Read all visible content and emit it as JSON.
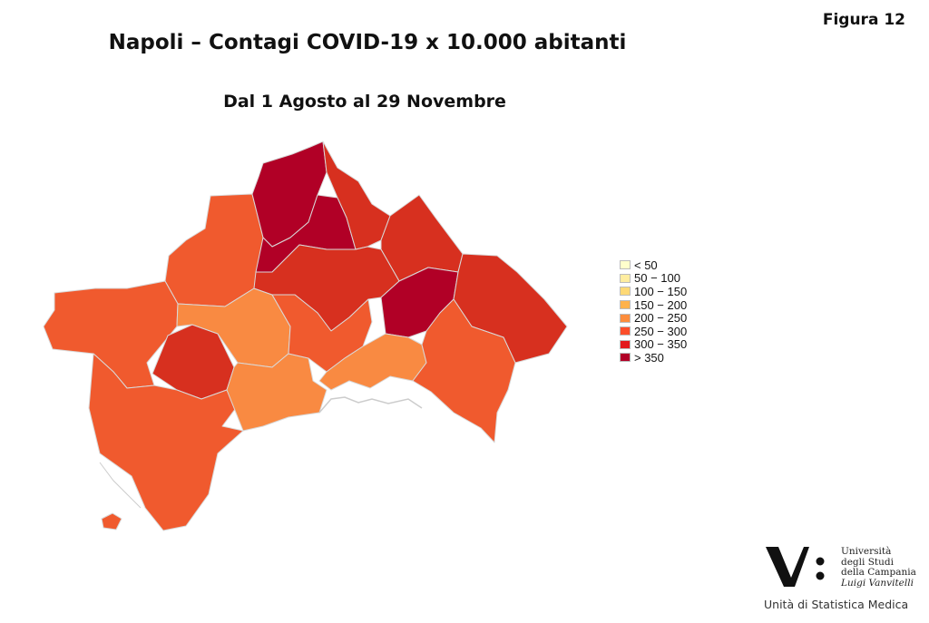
{
  "figure_label": "Figura  12",
  "title": "Napoli – Contagi COVID-19 x 10.000 abitanti",
  "subtitle": "Dal 1 Agosto al 29 Novembre",
  "legend": [
    {
      "label": "< 50",
      "color": "#ffffcc"
    },
    {
      "label": "50 − 100",
      "color": "#ffeda0"
    },
    {
      "label": "100 − 150",
      "color": "#fed976"
    },
    {
      "label": "150 − 200",
      "color": "#feb24c"
    },
    {
      "label": "200 − 250",
      "color": "#fd8d3c"
    },
    {
      "label": "250 − 300",
      "color": "#fc4e2a"
    },
    {
      "label": "300 − 350",
      "color": "#e31a1c"
    },
    {
      "label": "> 350",
      "color": "#b10026"
    }
  ],
  "map_zones": [
    {
      "name": "north-west-top",
      "class": "> 350",
      "color": "#b10026"
    },
    {
      "name": "north-center",
      "class": "> 350",
      "color": "#b10026"
    },
    {
      "name": "north-east-top",
      "class": "300 − 350",
      "color": "#d7301f"
    },
    {
      "name": "north-east",
      "class": "300 − 350",
      "color": "#d7301f"
    },
    {
      "name": "center-north",
      "class": "300 − 350",
      "color": "#d7301f"
    },
    {
      "name": "east-center",
      "class": "> 350",
      "color": "#b10026"
    },
    {
      "name": "far-east",
      "class": "300 − 350",
      "color": "#d7301f"
    },
    {
      "name": "west-island",
      "class": "300 − 350",
      "color": "#d7301f"
    },
    {
      "name": "north-west",
      "class": "250 − 300",
      "color": "#f05a2e"
    },
    {
      "name": "west",
      "class": "250 − 300",
      "color": "#f05a2e"
    },
    {
      "name": "south-west",
      "class": "250 − 300",
      "color": "#f05a2e"
    },
    {
      "name": "center-west",
      "class": "200 − 250",
      "color": "#f98a42"
    },
    {
      "name": "center-south",
      "class": "200 − 250",
      "color": "#f98a42"
    },
    {
      "name": "center",
      "class": "250 − 300",
      "color": "#f05a2e"
    },
    {
      "name": "east-south",
      "class": "250 − 300",
      "color": "#f05a2e"
    },
    {
      "name": "port",
      "class": "200 − 250",
      "color": "#f98a42"
    }
  ],
  "logo": {
    "lines": [
      "Università",
      "degli Studi",
      "della Campania"
    ],
    "italic_line": "Luigi Vanvitelli",
    "unit": "Unità di Statistica Medica"
  }
}
